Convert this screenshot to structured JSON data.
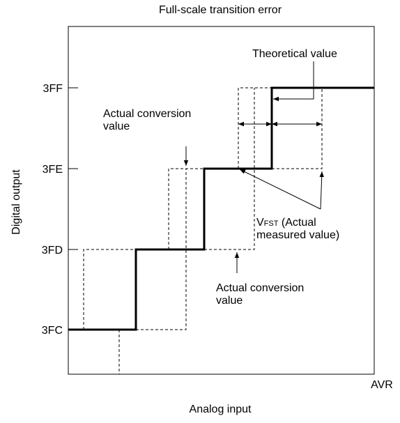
{
  "title": "Full-scale transition error",
  "axes": {
    "x_label": "Analog input",
    "y_label": "Digital output",
    "x_end": "AVR",
    "y_ticks": [
      "3FF",
      "3FE",
      "3FD",
      "3FC"
    ]
  },
  "annotations": {
    "theoretical": "Theoretical value",
    "actual_upper": [
      "Actual conversion",
      "value"
    ],
    "vfst": {
      "symbol": "V",
      "subscript": "FST",
      "rest": " (Actual",
      "line2": "measured value)"
    },
    "actual_lower": [
      "Actual conversion",
      "value"
    ]
  }
}
